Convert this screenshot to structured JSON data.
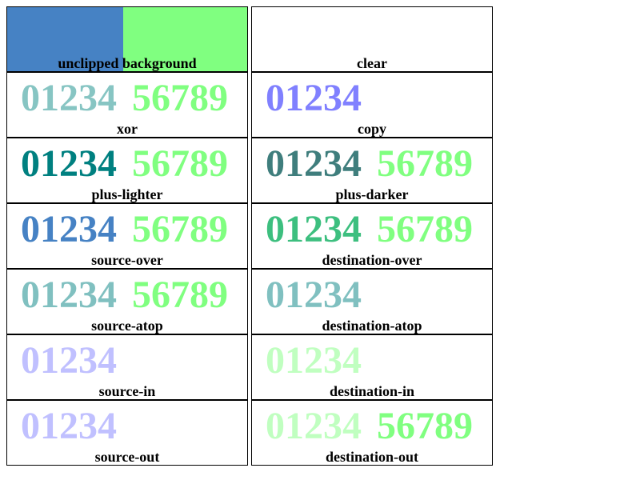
{
  "digits_left": "01234",
  "digits_right": "56789",
  "colors": {
    "blue": "#4682c4",
    "green": "#80ff80",
    "xor_left": "#87c5c3",
    "teal": "#008080",
    "plus_darker_left": "#3f7e7d",
    "dest_over_left": "#3dbf7f",
    "light_teal": "#80c0c0",
    "copy_left": "#8080ff",
    "light_purple": "#c0c0ff",
    "light_green": "#c0ffc0"
  },
  "cells": [
    {
      "label": "unclipped background"
    },
    {
      "label": "clear"
    },
    {
      "label": "xor"
    },
    {
      "label": "copy"
    },
    {
      "label": "plus-lighter"
    },
    {
      "label": "plus-darker"
    },
    {
      "label": "source-over"
    },
    {
      "label": "destination-over"
    },
    {
      "label": "source-atop"
    },
    {
      "label": "destination-atop"
    },
    {
      "label": "source-in"
    },
    {
      "label": "destination-in"
    },
    {
      "label": "source-out"
    },
    {
      "label": "destination-out"
    }
  ]
}
